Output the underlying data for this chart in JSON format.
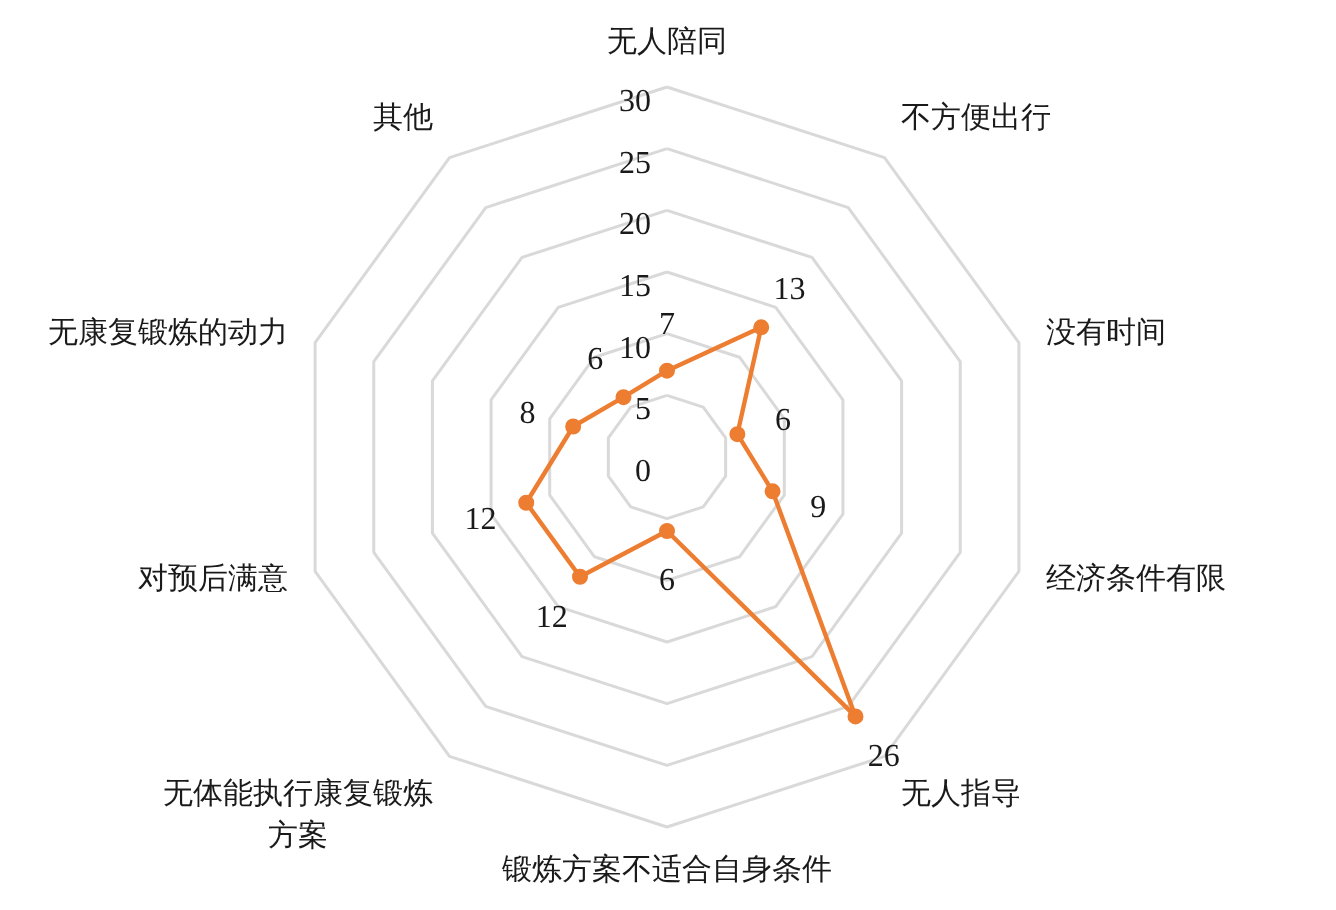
{
  "chart_data": {
    "type": "radar",
    "categories": [
      "无人陪同",
      "不方便出行",
      "没有时间",
      "经济条件有限",
      "无人指导",
      "锻炼方案不适合自身条件",
      "无体能执行康复锻炼方案",
      "对预后满意",
      "无康复锻炼的动力",
      "其他"
    ],
    "series": [
      {
        "color": "#ed7d31",
        "values": [
          7,
          13,
          6,
          9,
          26,
          6,
          12,
          12,
          8,
          6
        ]
      }
    ],
    "ylim": [
      0,
      30
    ],
    "yticks": [
      0,
      5,
      10,
      15,
      20,
      25,
      30
    ],
    "grid": true,
    "data_labels": true,
    "marker": "circle",
    "line_style": "solid"
  }
}
